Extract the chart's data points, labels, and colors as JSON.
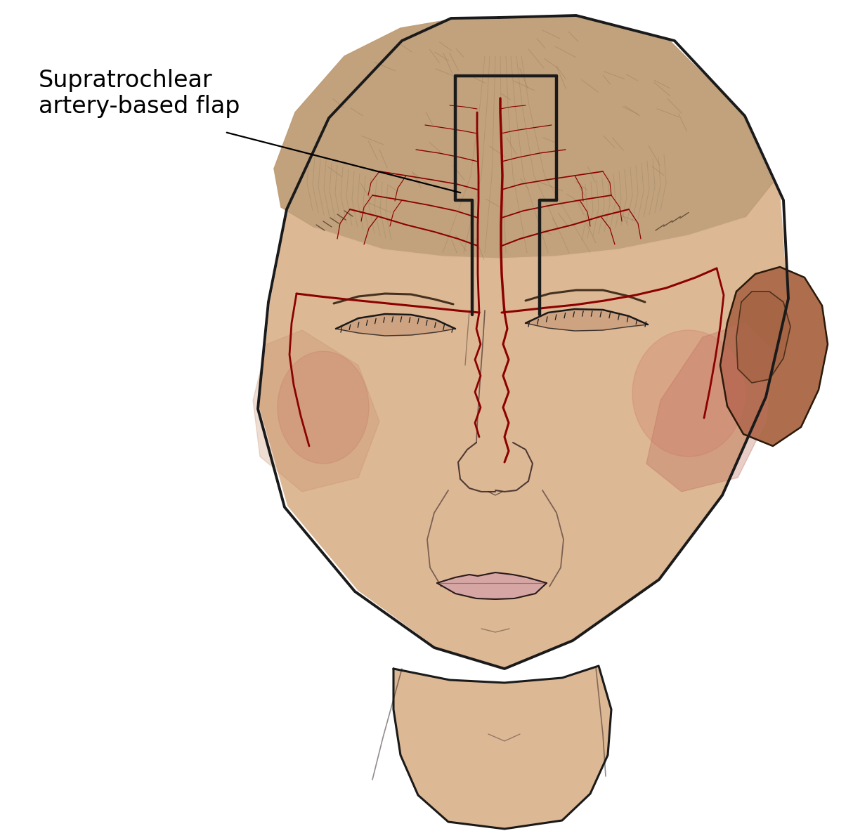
{
  "label_text": "Supratrochlear\nartery-based flap",
  "label_fontsize": 24,
  "bg_color": "#ffffff",
  "skin_light": "#ddb895",
  "skin_mid": "#c99a78",
  "skin_dark": "#b8845c",
  "scalp_color": "#c8aa88",
  "hair_color": "#b09070",
  "artery_color": "#8b0000",
  "flap_outline_color": "#1a1a1a",
  "face_outline_color": "#1a1a1a",
  "ear_color": "#b87050",
  "cheek_color": "#cc7060",
  "lip_color": "#d4a0a0"
}
